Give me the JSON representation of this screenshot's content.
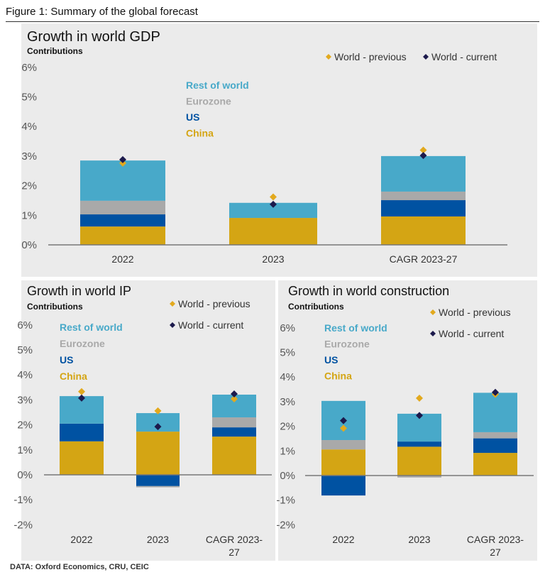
{
  "figure_title": "Figure 1: Summary of the global forecast",
  "footer": "DATA: Oxford Economics, CRU, CEIC",
  "colors": {
    "China": "#d4a514",
    "US": "#0052a2",
    "Eurozone": "#a9a9a9",
    "Rest of world": "#48a9c9",
    "World - previous": "#e2a91e",
    "World - current": "#1c1a4c"
  },
  "chart_data": [
    {
      "type": "bar",
      "stacked": true,
      "title": "Growth in world GDP",
      "subtitle": "Contributions",
      "categories": [
        "2022",
        "2023",
        "CAGR 2023-27"
      ],
      "yticks": [
        "6%",
        "5%",
        "4%",
        "3%",
        "2%",
        "1%",
        "0%"
      ],
      "ylim": [
        0,
        6
      ],
      "series": [
        {
          "name": "China",
          "values": [
            0.62,
            0.91,
            0.96
          ]
        },
        {
          "name": "US",
          "values": [
            0.41,
            0,
            0.55
          ]
        },
        {
          "name": "Eurozone",
          "values": [
            0.46,
            0,
            0.29
          ]
        },
        {
          "name": "Rest of world",
          "values": [
            1.36,
            0.51,
            1.2
          ]
        }
      ],
      "markers": [
        {
          "name": "World - previous",
          "values": [
            2.76,
            1.62,
            3.2
          ]
        },
        {
          "name": "World - current",
          "values": [
            2.88,
            1.37,
            3.02
          ]
        }
      ],
      "legend": [
        "Rest of world",
        "Eurozone",
        "US",
        "China"
      ]
    },
    {
      "type": "bar",
      "stacked": true,
      "title": "Growth in world IP",
      "subtitle": "Contributions",
      "categories": [
        [
          "2022"
        ],
        [
          "2023"
        ],
        [
          "CAGR 2023-",
          "27"
        ]
      ],
      "yticks": [
        "6%",
        "5%",
        "4%",
        "3%",
        "2%",
        "1%",
        "0%",
        "-1%",
        "-2%"
      ],
      "ylim": [
        -2,
        6
      ],
      "series": [
        {
          "name": "China",
          "values": [
            1.34,
            1.73,
            1.53
          ]
        },
        {
          "name": "US",
          "values": [
            0.71,
            -0.45,
            0.37
          ]
        },
        {
          "name": "Eurozone",
          "values": [
            0,
            -0.05,
            0.4
          ]
        },
        {
          "name": "Rest of world",
          "values": [
            1.1,
            0.74,
            0.91
          ]
        }
      ],
      "markers": [
        {
          "name": "World - previous",
          "values": [
            3.33,
            2.56,
            3.04
          ]
        },
        {
          "name": "World - current",
          "values": [
            3.07,
            1.93,
            3.24
          ]
        }
      ],
      "legend": [
        "Rest of world",
        "Eurozone",
        "US",
        "China"
      ]
    },
    {
      "type": "bar",
      "stacked": true,
      "title": "Growth in world construction",
      "subtitle": "Contributions",
      "categories": [
        [
          "2022"
        ],
        [
          "2023"
        ],
        [
          "CAGR 2023-",
          "27"
        ]
      ],
      "yticks": [
        "6%",
        "5%",
        "4%",
        "3%",
        "2%",
        "1%",
        "0%",
        "-1%",
        "-2%"
      ],
      "ylim": [
        -2,
        6
      ],
      "series": [
        {
          "name": "China",
          "values": [
            1.06,
            1.17,
            0.92
          ]
        },
        {
          "name": "US",
          "values": [
            -0.81,
            0.21,
            0.59
          ]
        },
        {
          "name": "Eurozone",
          "values": [
            0.38,
            -0.08,
            0.25
          ]
        },
        {
          "name": "Rest of world",
          "values": [
            1.59,
            1.13,
            1.6
          ]
        }
      ],
      "markers": [
        {
          "name": "World - previous",
          "values": [
            1.92,
            3.14,
            3.3
          ]
        },
        {
          "name": "World - current",
          "values": [
            2.23,
            2.44,
            3.38
          ]
        }
      ],
      "legend": [
        "Rest of world",
        "Eurozone",
        "US",
        "China"
      ]
    }
  ]
}
